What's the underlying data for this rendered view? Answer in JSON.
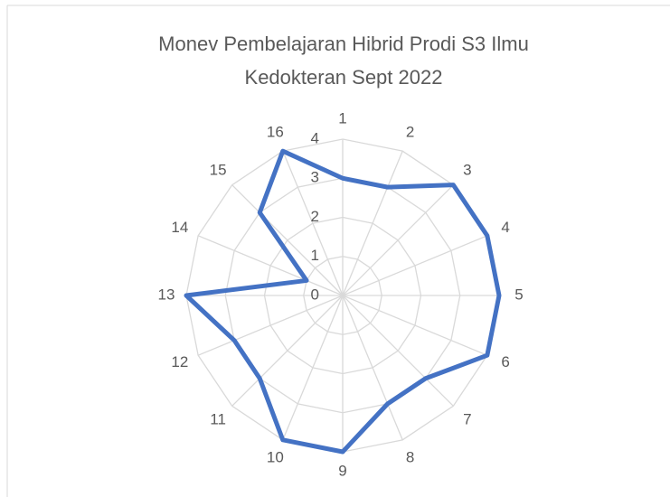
{
  "chart_data": {
    "type": "radar",
    "title": "Monev Pembelajaran Hibrid Prodi S3 Ilmu Kedokteran Sept 2022",
    "categories": [
      "1",
      "2",
      "3",
      "4",
      "5",
      "6",
      "7",
      "8",
      "9",
      "10",
      "11",
      "12",
      "13",
      "14",
      "15",
      "16"
    ],
    "values": [
      3,
      3,
      4,
      4,
      4,
      4,
      3,
      3,
      4,
      4,
      3,
      3,
      4,
      1,
      3,
      4
    ],
    "color": "#4472c4",
    "rlim": [
      0,
      4
    ],
    "rticks": [
      0,
      1,
      2,
      3,
      4
    ],
    "grid": true
  }
}
